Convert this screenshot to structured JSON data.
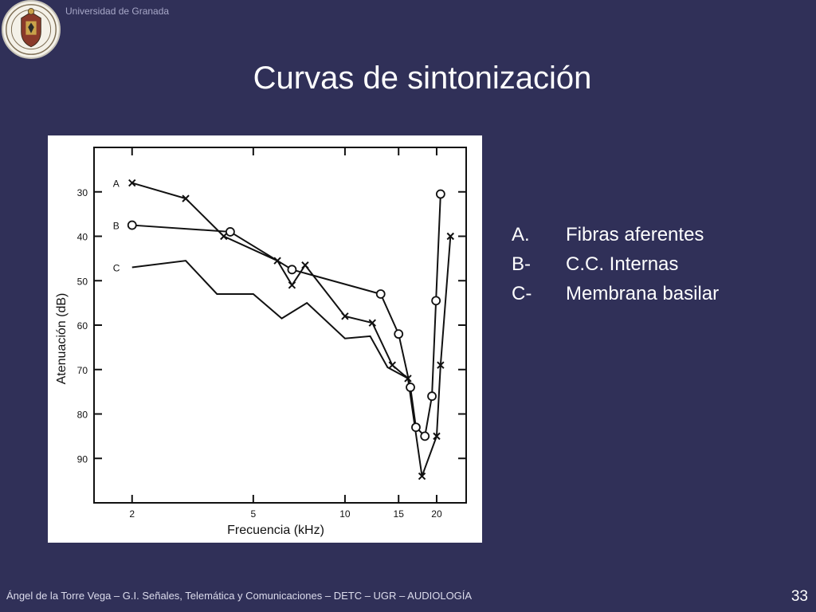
{
  "header": {
    "university": "Universidad de Granada",
    "logo_icon": "university-seal-icon"
  },
  "slide": {
    "title": "Curvas de sintonización",
    "page_number": "33"
  },
  "legend": [
    {
      "key": "A.",
      "text": "Fibras aferentes"
    },
    {
      "key": "B-",
      "text": "C.C. Internas"
    },
    {
      "key": "C-",
      "text": "Membrana basilar"
    }
  ],
  "footer": {
    "text": "Ángel de la Torre Vega – G.I. Señales, Telemática y Comunicaciones – DETC – UGR – AUDIOLOGÍA"
  },
  "chart_data": {
    "type": "line",
    "xlabel": "Frecuencia (kHz)",
    "ylabel": "Atenuación (dB)",
    "x_scale": "log",
    "xlim": [
      1.5,
      25
    ],
    "ylim": [
      20,
      100
    ],
    "y_inverted": true,
    "x_ticks": [
      2,
      5,
      10,
      15,
      20
    ],
    "y_ticks": [
      30,
      40,
      50,
      60,
      70,
      80,
      90
    ],
    "grid": false,
    "series": [
      {
        "name": "A",
        "marker": "x",
        "points": [
          [
            2,
            28
          ],
          [
            3,
            31.5
          ],
          [
            4,
            40
          ],
          [
            6,
            45.5
          ],
          [
            6.7,
            51
          ],
          [
            7.4,
            46.5
          ],
          [
            10,
            58
          ],
          [
            12.3,
            59.5
          ],
          [
            14.3,
            69
          ],
          [
            16.1,
            72
          ],
          [
            17.9,
            94
          ],
          [
            20,
            85
          ],
          [
            20.6,
            69
          ],
          [
            22.2,
            40
          ]
        ]
      },
      {
        "name": "B",
        "marker": "o",
        "points": [
          [
            2,
            37.5
          ],
          [
            4.2,
            39
          ],
          [
            6.7,
            47.5
          ],
          [
            13.1,
            53
          ],
          [
            15,
            62
          ],
          [
            16.4,
            74
          ],
          [
            17.1,
            83
          ],
          [
            18.3,
            85
          ],
          [
            19.3,
            76
          ],
          [
            19.9,
            54.5
          ],
          [
            20.6,
            30.5
          ]
        ]
      },
      {
        "name": "C",
        "marker": "none",
        "points": [
          [
            2,
            47
          ],
          [
            3,
            45.5
          ],
          [
            3.8,
            53
          ],
          [
            5,
            53
          ],
          [
            6.2,
            58.5
          ],
          [
            7.5,
            55
          ],
          [
            10,
            63
          ],
          [
            12.1,
            62.5
          ],
          [
            13.8,
            69.5
          ],
          [
            16.1,
            72
          ]
        ]
      }
    ]
  }
}
